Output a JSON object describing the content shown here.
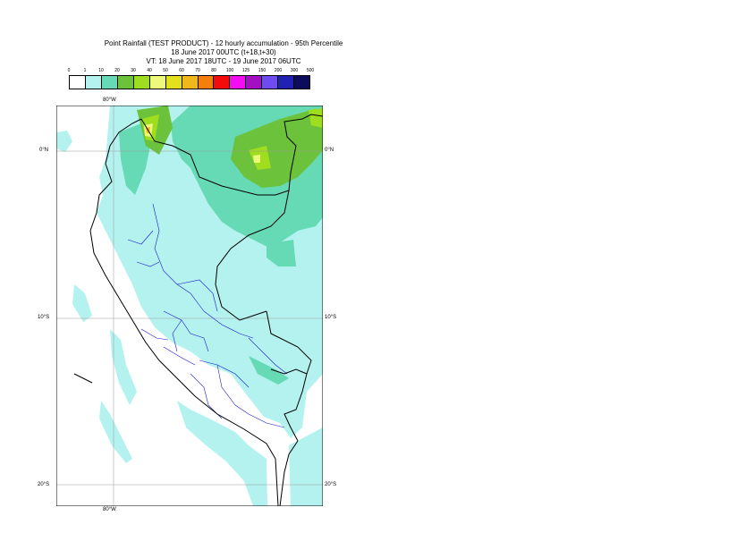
{
  "title": {
    "line1": "Point Rainfall (TEST PRODUCT) - 12 hourly accumulation - 95th Percentile",
    "line2": "18 June 2017 00UTC (t+18,t+30)",
    "line3": "VT: 18 June 2017 18UTC - 19 June 2017 06UTC"
  },
  "legend": {
    "ticks": [
      "0",
      "1",
      "10",
      "20",
      "30",
      "40",
      "50",
      "60",
      "70",
      "80",
      "100",
      "125",
      "150",
      "200",
      "300",
      "500"
    ],
    "colors": [
      "#ffffff",
      "#b3f2ee",
      "#66d9b5",
      "#6cc23a",
      "#9ede1e",
      "#ecf97a",
      "#e3e01c",
      "#f0b81a",
      "#f57f0d",
      "#f40c0c",
      "#f20ef0",
      "#a310c4",
      "#6e4cf2",
      "#2121b3",
      "#0c0c5c"
    ]
  },
  "axes": {
    "top_lon": "80°W",
    "bottom_lon": "80°W",
    "lat_labels": [
      "0°N",
      "10°S",
      "20°S"
    ]
  },
  "map": {
    "extent": {
      "lon_min": -83.5,
      "lon_max": -67.5,
      "lat_min": -21.0,
      "lat_max": 2.7
    },
    "gridlines": {
      "lon": [
        -80
      ],
      "lat": [
        0,
        -10,
        -20
      ]
    }
  }
}
